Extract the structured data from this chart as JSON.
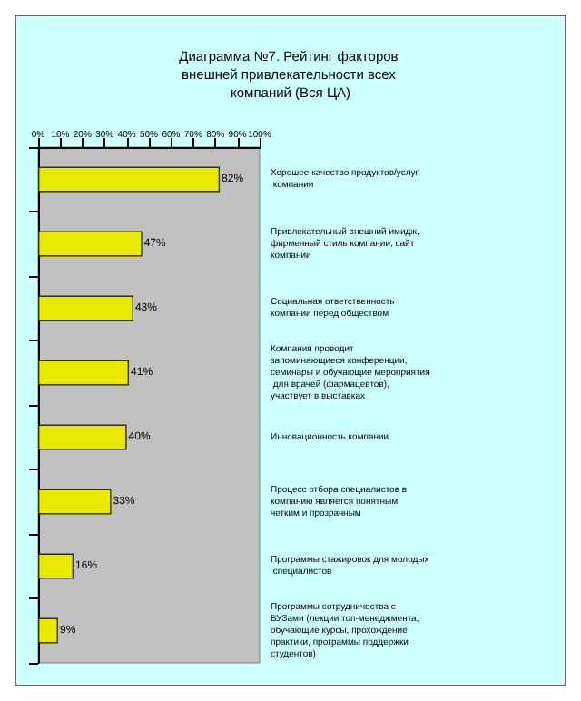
{
  "chart_data": {
    "type": "bar",
    "orientation": "horizontal",
    "title": "Диаграмма №7. Рейтинг факторов внешней привлекательности всех компаний (Вся ЦА)",
    "categories": [
      "Хорошее качество продуктов/услуг компании",
      "Привлекательный внешний имидж, фирменный стиль компании, сайт компании",
      "Социальная ответственность компании перед обществом",
      "Компания проводит запоминающиеся конференции, семинары и обучающие мероприятия для врачей (фармацевтов), участвует в выставках",
      "Инновационность компании",
      "Процесс отбора специалистов в компанию является понятным, четким и прозрачным",
      "Программы стажировок для молодых специалистов",
      "Программы сотрудничества с ВУЗами (лекции топ-менеджмента, обучающие курсы, прохождение практики, программы поддержки студентов)"
    ],
    "values": [
      82,
      47,
      43,
      41,
      40,
      33,
      16,
      9
    ],
    "value_labels": [
      "82%",
      "47%",
      "43%",
      "41%",
      "40%",
      "33%",
      "16%",
      "9%"
    ],
    "color": "#e8e800",
    "xlim": [
      0,
      100
    ],
    "xticks": [
      {
        "value": 0,
        "label": "0%"
      },
      {
        "value": 10,
        "label": "10%"
      },
      {
        "value": 20,
        "label": "20%"
      },
      {
        "value": 30,
        "label": "30%"
      },
      {
        "value": 40,
        "label": "40%"
      },
      {
        "value": 50,
        "label": "50%"
      },
      {
        "value": 60,
        "label": "60%"
      },
      {
        "value": 70,
        "label": "70%"
      },
      {
        "value": 80,
        "label": "80%"
      },
      {
        "value": 90,
        "label": "90%"
      },
      {
        "value": 100,
        "label": "100%"
      }
    ],
    "tick_labels": "x"
  }
}
